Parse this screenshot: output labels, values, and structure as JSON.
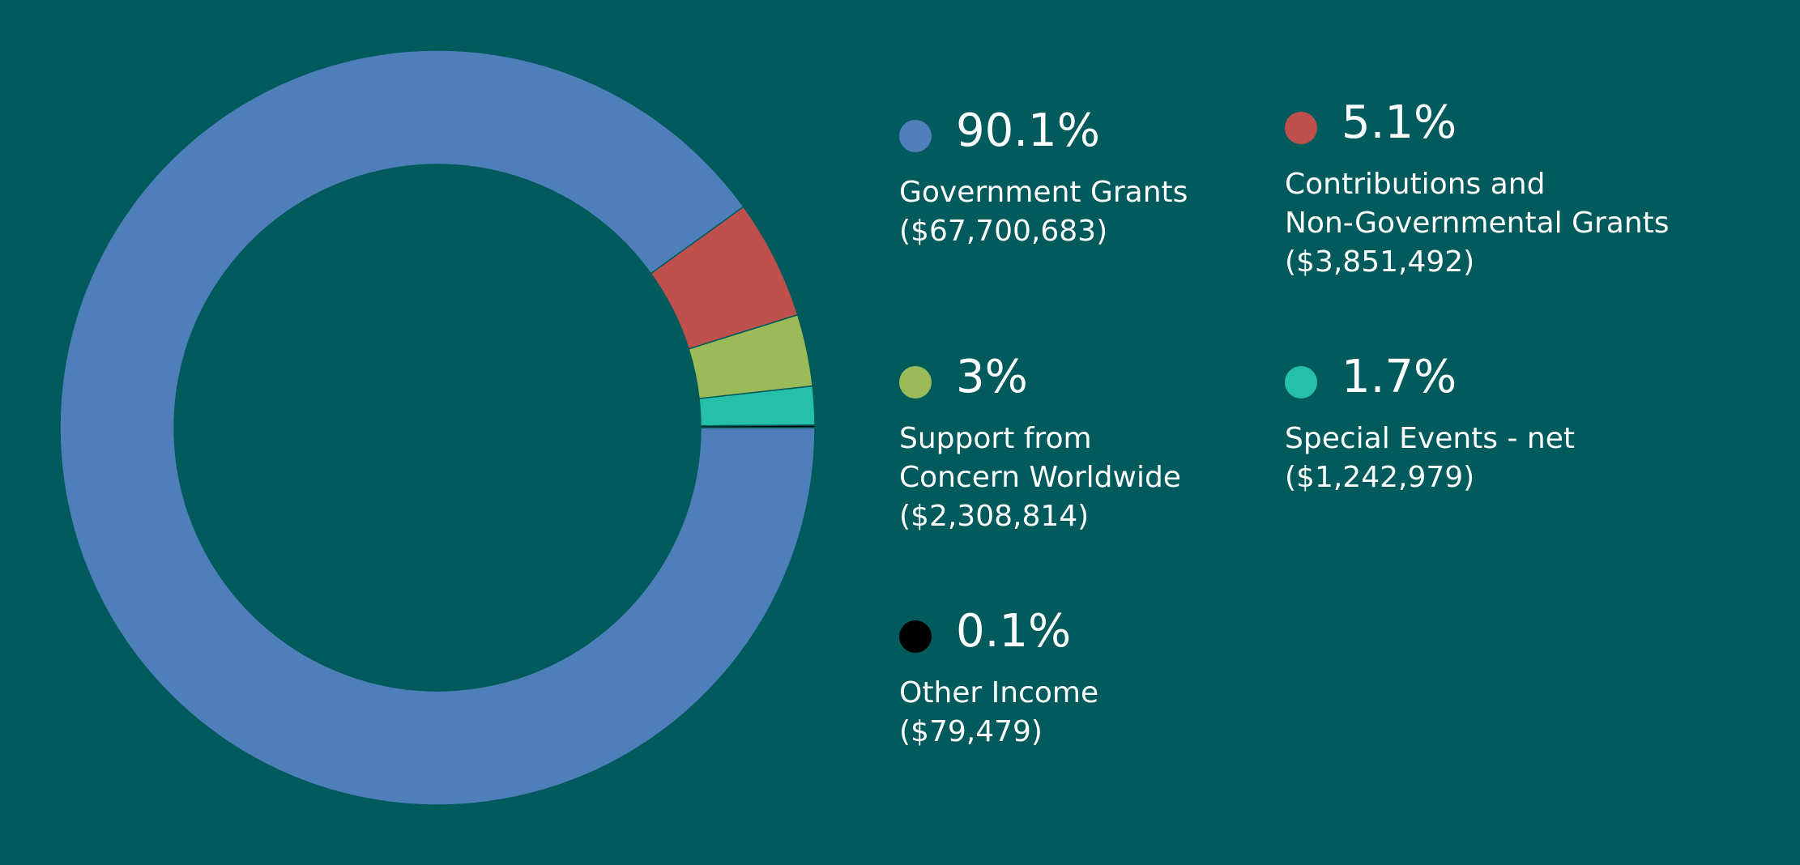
{
  "colors": {
    "background": "#015a5b",
    "government": "#4f7fba",
    "contributions": "#c0504d",
    "support": "#9bbb59",
    "special_events": "#26bfaa",
    "other": "#000000"
  },
  "chart_data": {
    "type": "pie",
    "variant": "donut",
    "title": "",
    "legend_placement": "right",
    "series": [
      {
        "percent_label": "90.1%",
        "label_lines": [
          "Government  Grants",
          "($67,700,683)"
        ],
        "value": 67700683,
        "color": "#4f7fba"
      },
      {
        "percent_label": "5.1%",
        "label_lines": [
          "Contributions and",
          "Non-Governmental Grants",
          "($3,851,492)"
        ],
        "value": 3851492,
        "color": "#c0504d"
      },
      {
        "percent_label": "3%",
        "label_lines": [
          "Support from",
          "Concern Worldwide",
          "($2,308,814)"
        ],
        "value": 2308814,
        "color": "#9bbb59"
      },
      {
        "percent_label": "1.7%",
        "label_lines": [
          "Special  Events  -  net",
          "($1,242,979)"
        ],
        "value": 1242979,
        "color": "#26bfaa"
      },
      {
        "percent_label": "0.1%",
        "label_lines": [
          "Other  Income",
          "($79,479)"
        ],
        "value": 79479,
        "color": "#000000"
      }
    ]
  }
}
